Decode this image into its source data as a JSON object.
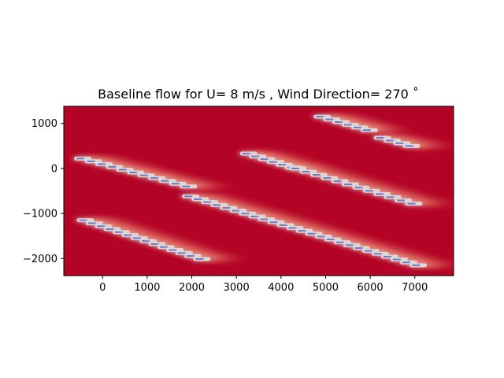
{
  "chart_data": {
    "type": "heatmap",
    "title": "Baseline flow for U= 8 m/s  ,  Wind Direction= 270  ˚",
    "xlabel": "",
    "ylabel": "",
    "xlim": [
      -870,
      7870
    ],
    "ylim": [
      -2380,
      1380
    ],
    "x_ticks": [
      0,
      1000,
      2000,
      3000,
      4000,
      5000,
      6000,
      7000
    ],
    "y_ticks": [
      -2000,
      -1000,
      0,
      1000
    ],
    "x_tick_labels": [
      "0",
      "1000",
      "2000",
      "3000",
      "4000",
      "5000",
      "6000",
      "7000"
    ],
    "y_tick_labels": [
      "−2000",
      "−1000",
      "0",
      "1000"
    ],
    "colormap": "coolwarm",
    "colors": {
      "freestream": "#b40426",
      "deficit_mid": "#f4987a",
      "deficit_low": "#dddcdc",
      "deficit_core": "#3b4cc0"
    },
    "turbine_rows": [
      {
        "x_start": -620,
        "y_start": 220,
        "x_end": 1750,
        "y_end": -400,
        "turbines": 11
      },
      {
        "x_start": -560,
        "y_start": -1150,
        "x_end": 2050,
        "y_end": -2010,
        "turbines": 14
      },
      {
        "x_start": 1800,
        "y_start": -620,
        "x_end": 6900,
        "y_end": -2150,
        "turbines": 25
      },
      {
        "x_start": 3100,
        "y_start": 330,
        "x_end": 4100,
        "y_end": 20,
        "turbines": 6
      },
      {
        "x_start": 4200,
        "y_start": 0,
        "x_end": 6800,
        "y_end": -780,
        "turbines": 12
      },
      {
        "x_start": 4750,
        "y_start": 1150,
        "x_end": 5800,
        "y_end": 850,
        "turbines": 6
      },
      {
        "x_start": 6100,
        "y_start": 680,
        "x_end": 6750,
        "y_end": 500,
        "turbines": 4
      }
    ]
  }
}
